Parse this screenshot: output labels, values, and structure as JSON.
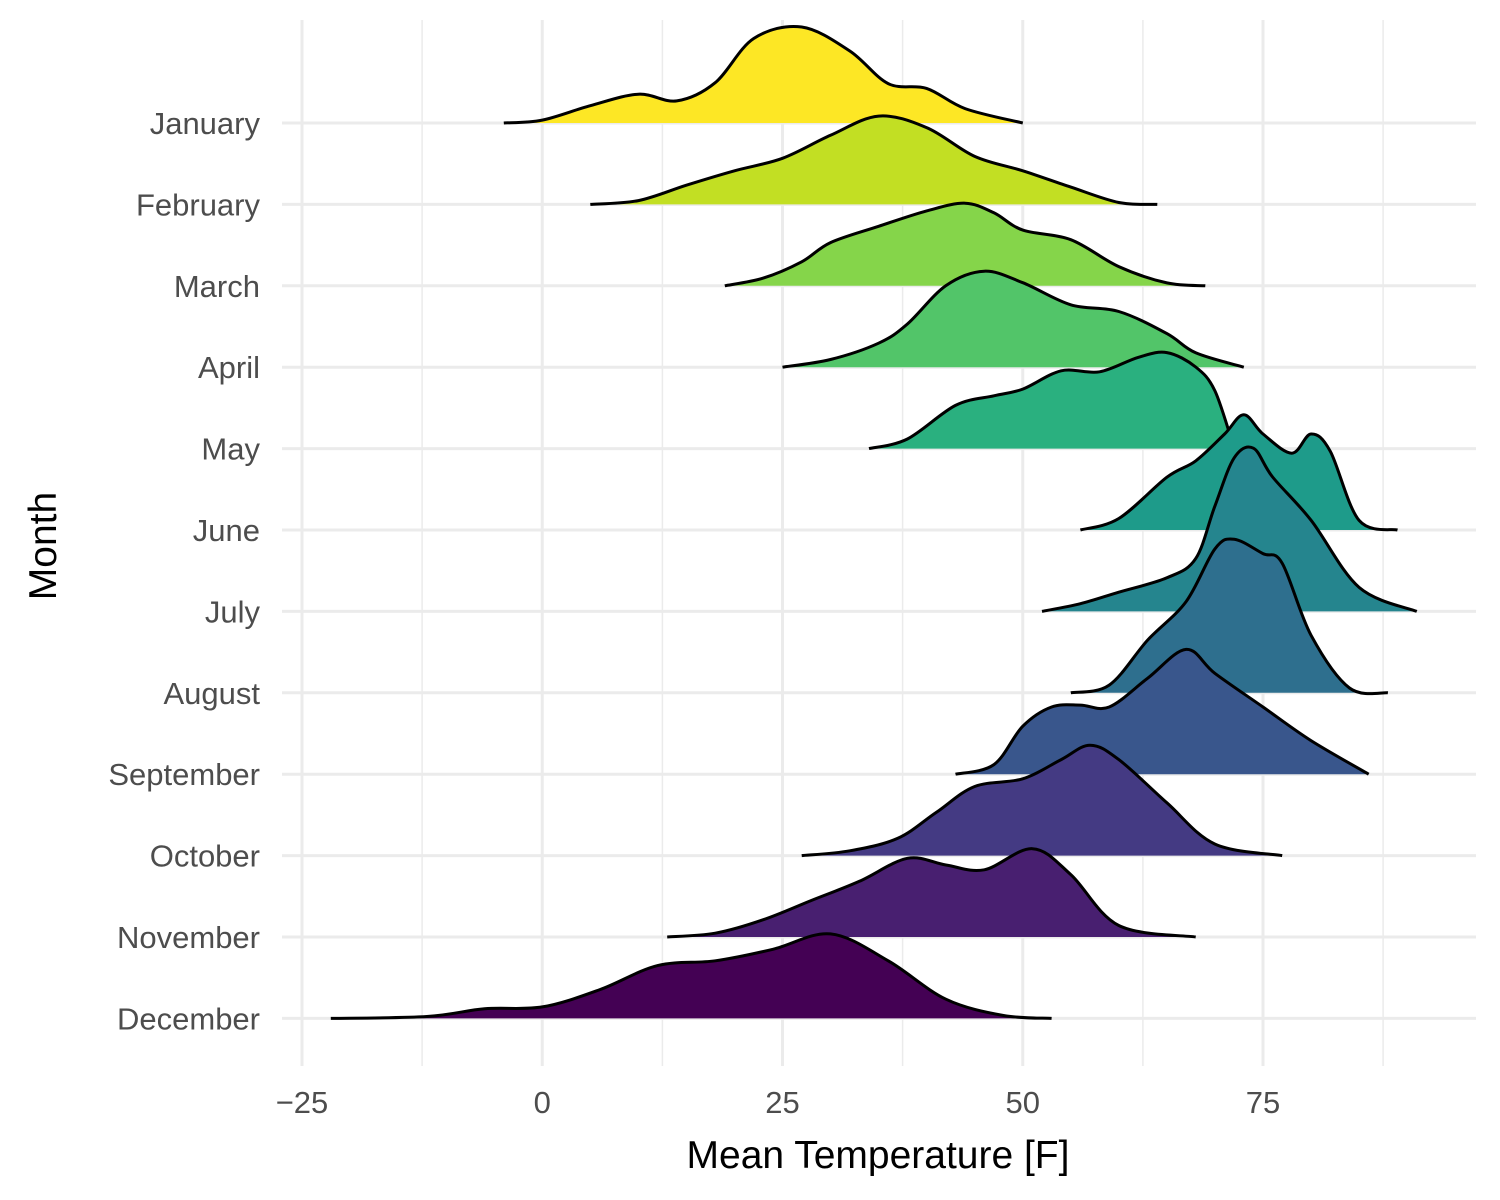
{
  "chart_data": {
    "type": "area",
    "subtype": "ridgeline-density",
    "title": "",
    "xlabel": "Mean Temperature [F]",
    "ylabel": "Month",
    "xlim": [
      -27,
      96
    ],
    "x_ticks": [
      -25,
      0,
      25,
      50,
      75
    ],
    "x_tick_labels": [
      "−25",
      "0",
      "25",
      "50",
      "75"
    ],
    "grid": true,
    "legend": "none",
    "series": [
      {
        "name": "January",
        "color": "#FDE725",
        "x": [
          -4,
          0,
          5,
          10,
          14,
          18,
          22,
          27,
          32,
          36,
          40,
          44,
          50
        ],
        "y": [
          0,
          0.03,
          0.18,
          0.3,
          0.23,
          0.42,
          0.88,
          1.0,
          0.75,
          0.41,
          0.36,
          0.15,
          0
        ]
      },
      {
        "name": "February",
        "color": "#C2DF23",
        "x": [
          5,
          10,
          15,
          20,
          25,
          30,
          35,
          40,
          45,
          50,
          55,
          60,
          64
        ],
        "y": [
          0,
          0.04,
          0.2,
          0.35,
          0.48,
          0.72,
          0.92,
          0.8,
          0.5,
          0.35,
          0.18,
          0.02,
          0
        ]
      },
      {
        "name": "March",
        "color": "#85D54A",
        "x": [
          19,
          23,
          27,
          30,
          35,
          40,
          44,
          47,
          50,
          55,
          60,
          65,
          69
        ],
        "y": [
          0,
          0.08,
          0.25,
          0.45,
          0.62,
          0.78,
          0.86,
          0.76,
          0.58,
          0.48,
          0.2,
          0.03,
          0
        ]
      },
      {
        "name": "April",
        "color": "#52C569",
        "x": [
          25,
          30,
          35,
          38,
          42,
          46,
          50,
          55,
          60,
          65,
          68,
          73
        ],
        "y": [
          0,
          0.08,
          0.25,
          0.45,
          0.85,
          1.0,
          0.88,
          0.65,
          0.58,
          0.35,
          0.15,
          0
        ]
      },
      {
        "name": "May",
        "color": "#2AB07F",
        "x": [
          34,
          38,
          43,
          47,
          50,
          54,
          58,
          62,
          65,
          68,
          70,
          72
        ],
        "y": [
          0,
          0.1,
          0.45,
          0.55,
          0.62,
          0.81,
          0.8,
          0.95,
          1.0,
          0.85,
          0.6,
          0
        ]
      },
      {
        "name": "June",
        "color": "#1E9B8A",
        "x": [
          56,
          60,
          65,
          68,
          71,
          73,
          75,
          78,
          80,
          82,
          85,
          89
        ],
        "y": [
          0,
          0.12,
          0.55,
          0.72,
          1.0,
          1.2,
          1.0,
          0.8,
          1.0,
          0.82,
          0.1,
          0
        ]
      },
      {
        "name": "July",
        "color": "#25858E",
        "x": [
          52,
          56,
          60,
          65,
          68,
          70,
          72,
          74,
          76,
          80,
          85,
          91
        ],
        "y": [
          0,
          0.08,
          0.2,
          0.35,
          0.55,
          1.1,
          1.6,
          1.7,
          1.4,
          0.95,
          0.25,
          0
        ]
      },
      {
        "name": "August",
        "color": "#2E6F8E",
        "x": [
          55,
          59,
          63,
          67,
          70,
          72,
          75,
          77,
          80,
          84,
          88
        ],
        "y": [
          0,
          0.08,
          0.55,
          0.95,
          1.5,
          1.6,
          1.45,
          1.35,
          0.6,
          0.05,
          0
        ]
      },
      {
        "name": "September",
        "color": "#39568C",
        "x": [
          43,
          47,
          50,
          53,
          56,
          59,
          63,
          67,
          70,
          75,
          80,
          86
        ],
        "y": [
          0,
          0.1,
          0.5,
          0.7,
          0.72,
          0.7,
          1.0,
          1.3,
          1.05,
          0.7,
          0.35,
          0
        ]
      },
      {
        "name": "October",
        "color": "#443A83",
        "x": [
          27,
          32,
          37,
          41,
          45,
          50,
          54,
          57,
          60,
          65,
          70,
          77
        ],
        "y": [
          0,
          0.05,
          0.18,
          0.45,
          0.72,
          0.8,
          1.0,
          1.15,
          1.0,
          0.55,
          0.12,
          0
        ]
      },
      {
        "name": "November",
        "color": "#481F70",
        "x": [
          13,
          18,
          23,
          28,
          33,
          38,
          42,
          46,
          51,
          55,
          60,
          68
        ],
        "y": [
          0,
          0.04,
          0.18,
          0.38,
          0.58,
          0.82,
          0.75,
          0.7,
          0.92,
          0.65,
          0.12,
          0
        ]
      },
      {
        "name": "December",
        "color": "#440154",
        "x": [
          -22,
          -12,
          -6,
          0,
          6,
          12,
          18,
          24,
          30,
          36,
          42,
          48,
          53
        ],
        "y": [
          0,
          0.02,
          0.1,
          0.12,
          0.3,
          0.55,
          0.6,
          0.72,
          0.88,
          0.6,
          0.2,
          0.03,
          0
        ]
      }
    ]
  }
}
